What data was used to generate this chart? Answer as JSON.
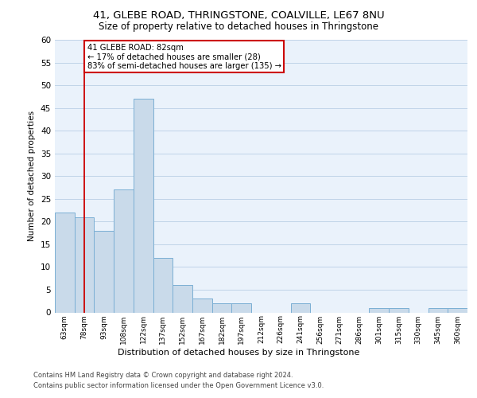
{
  "title_line1": "41, GLEBE ROAD, THRINGSTONE, COALVILLE, LE67 8NU",
  "title_line2": "Size of property relative to detached houses in Thringstone",
  "xlabel": "Distribution of detached houses by size in Thringstone",
  "ylabel": "Number of detached properties",
  "categories": [
    "63sqm",
    "78sqm",
    "93sqm",
    "108sqm",
    "122sqm",
    "137sqm",
    "152sqm",
    "167sqm",
    "182sqm",
    "197sqm",
    "212sqm",
    "226sqm",
    "241sqm",
    "256sqm",
    "271sqm",
    "286sqm",
    "301sqm",
    "315sqm",
    "330sqm",
    "345sqm",
    "360sqm"
  ],
  "values": [
    22,
    21,
    18,
    27,
    47,
    12,
    6,
    3,
    2,
    2,
    0,
    0,
    2,
    0,
    0,
    0,
    1,
    1,
    0,
    1,
    1
  ],
  "bar_color": "#c9daea",
  "bar_edge_color": "#7bafd4",
  "ylim": [
    0,
    60
  ],
  "yticks": [
    0,
    5,
    10,
    15,
    20,
    25,
    30,
    35,
    40,
    45,
    50,
    55,
    60
  ],
  "property_line_color": "#cc0000",
  "property_line_index": 1,
  "annotation_text": "41 GLEBE ROAD: 82sqm\n← 17% of detached houses are smaller (28)\n83% of semi-detached houses are larger (135) →",
  "annotation_box_color": "#cc0000",
  "footer_line1": "Contains HM Land Registry data © Crown copyright and database right 2024.",
  "footer_line2": "Contains public sector information licensed under the Open Government Licence v3.0.",
  "axes_facecolor": "#eaf2fb",
  "grid_color": "#c0d4e8"
}
